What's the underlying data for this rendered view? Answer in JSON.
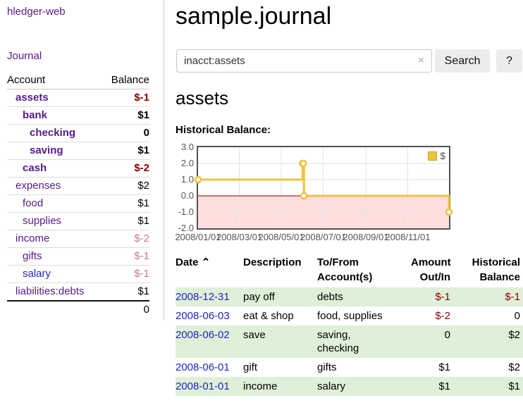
{
  "colors": {
    "link-purple": "#551a8b",
    "link-blue": "#2222cc",
    "neg-strong": "#8b0000",
    "neg-soft": "#c07f7f",
    "row-green": "#dff0d8",
    "border-light": "#dddddd",
    "border-mid": "#c9c9c9",
    "btn-bg": "#ececec",
    "clear-icon": "#c5bad6",
    "gold": "#edc240",
    "gold-dark": "#c7a229",
    "pink": "#ffdede",
    "zero-line": "#8b0000",
    "frame": "#545454",
    "grid": "#e3e3e3",
    "tick-text": "#545454"
  },
  "app": {
    "brand": "hledger-web",
    "nav_journal": "Journal"
  },
  "sidebar": {
    "account_header": "Account",
    "balance_header": "Balance",
    "rows": [
      {
        "name": "assets",
        "balance": "$-1"
      },
      {
        "name": "bank",
        "balance": "$1"
      },
      {
        "name": "checking",
        "balance": "0"
      },
      {
        "name": "saving",
        "balance": "$1"
      },
      {
        "name": "cash",
        "balance": "$-2"
      },
      {
        "name": "expenses",
        "balance": "$2"
      },
      {
        "name": "food",
        "balance": "$1"
      },
      {
        "name": "supplies",
        "balance": "$1"
      },
      {
        "name": "income",
        "balance": "$-2"
      },
      {
        "name": "gifts",
        "balance": "$-1"
      },
      {
        "name": "salary",
        "balance": "$-1"
      },
      {
        "name": "liabilities:debts",
        "balance": "$1"
      }
    ],
    "total": "0"
  },
  "main": {
    "title": "sample.journal",
    "search": {
      "value": "inacct:assets",
      "clear_icon": "×",
      "button": "Search",
      "help": "?"
    },
    "account_heading": "assets",
    "chart_label": "Historical Balance:",
    "sort_icon": "⌃"
  },
  "chart_data": {
    "type": "line",
    "step": true,
    "title": "Historical Balance:",
    "series": [
      {
        "name": "$",
        "color": "#edc240",
        "points": [
          [
            "2008-01-01",
            1
          ],
          [
            "2008-06-01",
            2
          ],
          [
            "2008-06-02",
            2
          ],
          [
            "2008-06-03",
            0
          ],
          [
            "2008-12-31",
            -1
          ]
        ]
      }
    ],
    "xlim": [
      "2008-01-01",
      "2008-12-31"
    ],
    "ylim": [
      -2,
      3
    ],
    "x_ticks": [
      {
        "label": "2008/01/01",
        "date": "2008-01-01"
      },
      {
        "label": "2008/03/01",
        "date": "2008-03-01"
      },
      {
        "label": "2008/05/01",
        "date": "2008-05-01"
      },
      {
        "label": "2008/07/01",
        "date": "2008-07-01"
      },
      {
        "label": "2008/09/01",
        "date": "2008-09-01"
      },
      {
        "label": "2008/11/01",
        "date": "2008-11-01"
      }
    ],
    "y_ticks": [
      "3.0",
      "2.0",
      "1.0",
      "0.0",
      "-1.0",
      "-2.0"
    ],
    "y_tick_values": [
      3,
      2,
      1,
      0,
      -1,
      -2
    ],
    "legend": {
      "label": "$",
      "position": "top-right"
    },
    "negative_region_shaded": true,
    "grid": true
  },
  "register": {
    "headers": {
      "date": "Date",
      "description": "Description",
      "accounts": "To/From\nAccount(s)",
      "amount": "Amount\nOut/In",
      "balance": "Historical\nBalance"
    },
    "rows": [
      {
        "date": "2008-12-31",
        "description": "pay off",
        "accounts": "debts",
        "amount": "$-1",
        "balance": "$-1"
      },
      {
        "date": "2008-06-03",
        "description": "eat & shop",
        "accounts": "food, supplies",
        "amount": "$-2",
        "balance": "0"
      },
      {
        "date": "2008-06-02",
        "description": "save",
        "accounts": "saving,\nchecking",
        "amount": "0",
        "balance": "$2"
      },
      {
        "date": "2008-06-01",
        "description": "gift",
        "accounts": "gifts",
        "amount": "$1",
        "balance": "$2"
      },
      {
        "date": "2008-01-01",
        "description": "income",
        "accounts": "salary",
        "amount": "$1",
        "balance": "$1"
      }
    ]
  }
}
